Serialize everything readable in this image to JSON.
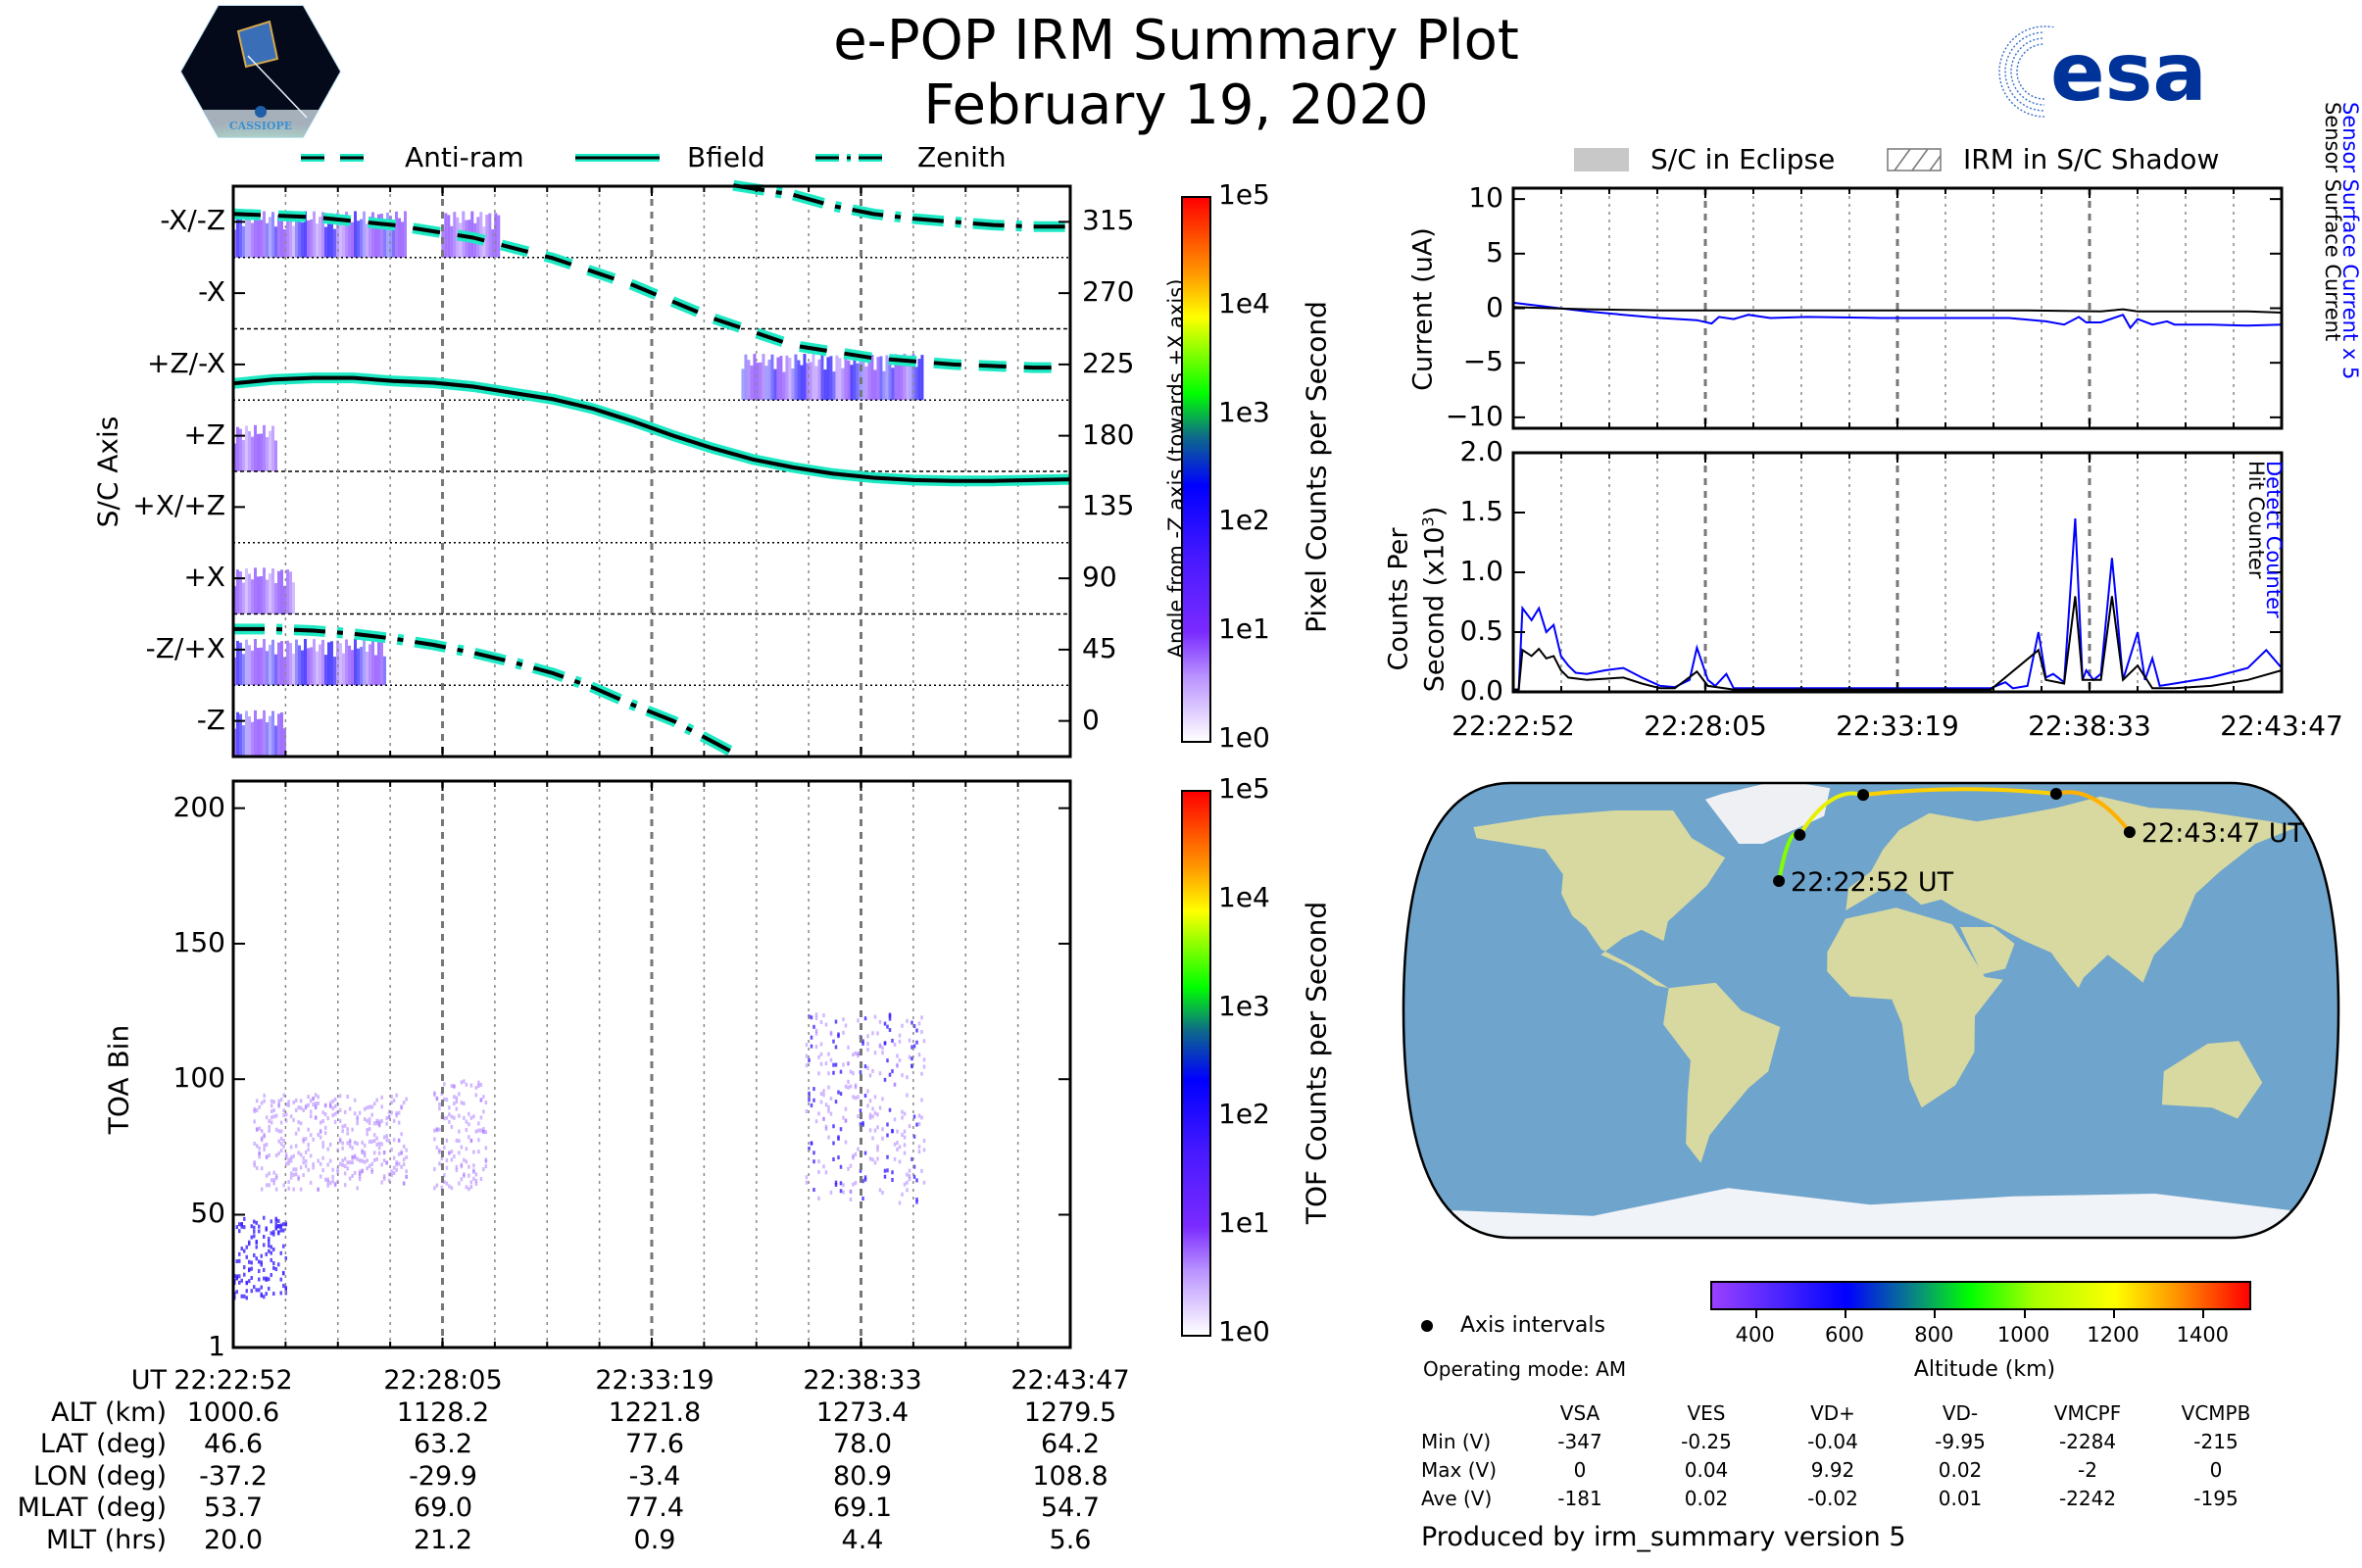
{
  "header": {
    "title": "e-POP IRM Summary Plot",
    "date": "February 19, 2020",
    "left_logo": {
      "name": "cassiope-logo",
      "text": "CASSIOPE"
    },
    "right_logo": {
      "name": "esa-logo",
      "text": "esa",
      "color": "#003399"
    }
  },
  "colors": {
    "trace_outline": "#1de9c4",
    "blue_series": "#0000ff",
    "black_series": "#000000",
    "spectrogram_main": "#8a2be2"
  },
  "left_legend": {
    "items": [
      {
        "label": "Anti-ram",
        "style": "dashed"
      },
      {
        "label": "Bfield",
        "style": "solid"
      },
      {
        "label": "Zenith",
        "style": "dashdot"
      }
    ]
  },
  "right_legend": {
    "items": [
      {
        "label": "S/C in Eclipse",
        "swatch": "gray-fill"
      },
      {
        "label": "IRM in S/C Shadow",
        "swatch": "hatched"
      }
    ]
  },
  "chart_data": [
    {
      "id": "sc-axis-panel",
      "type": "heatmap",
      "title": "",
      "ylabel": "S/C Axis",
      "y2label": "Angle from -Z axis (towards +X axis)",
      "y_categories": [
        "-X/-Z",
        "-X",
        "+Z/-X",
        "+Z",
        "+X/+Z",
        "+X",
        "-Z/+X",
        "-Z"
      ],
      "y2_ticks": [
        315,
        270,
        225,
        180,
        135,
        90,
        45,
        0
      ],
      "y2lim": [
        -20,
        340
      ],
      "x_ticks": [
        "22:22:52",
        "22:28:05",
        "22:33:19",
        "22:38:33",
        "22:43:47"
      ],
      "x_minutes_range": [
        0,
        20.92
      ],
      "colorbar": {
        "label": "Pixel Counts per Second",
        "scale": "log",
        "ticks": [
          "1e0",
          "1e1",
          "1e2",
          "1e3",
          "1e4",
          "1e5"
        ]
      },
      "lines": [
        {
          "name": "Anti-ram",
          "style": "dashed",
          "x_min": [
            0,
            2,
            4,
            6,
            8,
            10,
            12,
            14,
            16,
            18,
            20,
            20.92
          ],
          "y_deg": [
            320,
            318,
            313,
            305,
            292,
            275,
            254,
            237,
            229,
            225,
            223,
            223
          ]
        },
        {
          "name": "Bfield",
          "style": "solid",
          "x_min": [
            0,
            1,
            2,
            3,
            4,
            5,
            6,
            7,
            8,
            9,
            10,
            11,
            12,
            13,
            14,
            15,
            16,
            17,
            18,
            19,
            20,
            20.92
          ],
          "y_deg": [
            213,
            215.5,
            216.5,
            216.5,
            214.5,
            213.5,
            211,
            207,
            203,
            197,
            189,
            180,
            172,
            165,
            160,
            156,
            153.5,
            152,
            151.5,
            151.5,
            152,
            152.5
          ]
        },
        {
          "name": "Zenith (upper)",
          "style": "dashdot",
          "x_min": [
            12.5,
            14,
            15,
            16,
            17,
            18,
            19,
            20,
            20.92
          ],
          "y_deg": [
            338,
            332,
            325,
            320,
            317,
            315,
            313,
            312,
            312
          ]
        },
        {
          "name": "Zenith (lower)",
          "style": "dashdot",
          "x_min": [
            0,
            1,
            2,
            3,
            4,
            5,
            6,
            7,
            8,
            9,
            10,
            11,
            12.5
          ],
          "y_deg": [
            58,
            58,
            57,
            55,
            52,
            48,
            43,
            37,
            30,
            21,
            10,
            0,
            -20
          ]
        }
      ],
      "blobs": [
        {
          "x_min": [
            0,
            4.3
          ],
          "row": "-X/-Z",
          "intensity": "1e1-1e2"
        },
        {
          "x_min": [
            5.2,
            6.6
          ],
          "row": "-X/-Z",
          "intensity": "1e1"
        },
        {
          "x_min": [
            12.7,
            17.2
          ],
          "row": "+Z/-X",
          "intensity": "1e1-1e2"
        },
        {
          "x_min": [
            0,
            1.1
          ],
          "row": "+Z",
          "intensity": "1e0-1e1"
        },
        {
          "x_min": [
            0,
            1.5
          ],
          "row": "+X",
          "intensity": "1e1"
        },
        {
          "x_min": [
            0,
            3.8
          ],
          "row": "-Z/+X",
          "intensity": "1e1-1e2"
        },
        {
          "x_min": [
            0,
            1.3
          ],
          "row": "-Z",
          "intensity": "1e1-1e2"
        }
      ]
    },
    {
      "id": "toa-panel",
      "type": "heatmap",
      "ylabel": "TOA Bin",
      "y_ticks": [
        1,
        50,
        100,
        150,
        200
      ],
      "ylim": [
        1,
        210
      ],
      "x_ticks": [
        "22:22:52",
        "22:28:05",
        "22:33:19",
        "22:38:33",
        "22:43:47"
      ],
      "colorbar": {
        "label": "TOF Counts per Second",
        "scale": "log",
        "ticks": [
          "1e0",
          "1e1",
          "1e2",
          "1e3",
          "1e4",
          "1e5"
        ]
      },
      "blobs": [
        {
          "x_min": [
            0,
            1.3
          ],
          "toa": [
            20,
            50
          ],
          "intensity": "1e1"
        },
        {
          "x_min": [
            0.5,
            4.3
          ],
          "toa": [
            60,
            95
          ],
          "intensity": "1e0-1e1"
        },
        {
          "x_min": [
            5.0,
            6.3
          ],
          "toa": [
            60,
            100
          ],
          "intensity": "1e0-1e1"
        },
        {
          "x_min": [
            14.3,
            17.3
          ],
          "toa": [
            55,
            125
          ],
          "intensity": "1e1"
        }
      ]
    },
    {
      "id": "current-panel",
      "type": "line",
      "ylabel": "Current (uA)",
      "ylim": [
        -11,
        11
      ],
      "y_ticks": [
        10,
        5,
        0,
        -5,
        -10
      ],
      "x_ticks": [
        "22:22:52",
        "22:28:05",
        "22:33:19",
        "22:38:33",
        "22:43:47"
      ],
      "series": [
        {
          "name": "Sensor Surface Current x 5",
          "color": "#0000ff",
          "x_min": [
            0,
            1,
            2,
            3,
            4,
            5,
            5.4,
            5.6,
            6,
            6.4,
            7,
            8,
            10,
            12,
            13.5,
            14.5,
            15,
            15.4,
            15.6,
            16,
            16.6,
            16.8,
            17,
            17.4,
            17.8,
            18,
            19,
            20,
            20.92
          ],
          "values": [
            0.5,
            0.1,
            -0.3,
            -0.6,
            -0.9,
            -1.1,
            -1.4,
            -0.8,
            -1.0,
            -0.6,
            -0.9,
            -0.8,
            -0.9,
            -0.9,
            -0.9,
            -1.2,
            -1.5,
            -0.8,
            -1.3,
            -1.3,
            -0.6,
            -1.8,
            -1.0,
            -1.5,
            -1.2,
            -1.5,
            -1.5,
            -1.6,
            -1.5
          ]
        },
        {
          "name": "Sensor Surface Current",
          "color": "#000000",
          "x_min": [
            0,
            2,
            4,
            6,
            8,
            10,
            12,
            14,
            16,
            16.6,
            17,
            18,
            20,
            20.92
          ],
          "values": [
            0.1,
            -0.1,
            -0.2,
            -0.2,
            -0.2,
            -0.2,
            -0.2,
            -0.2,
            -0.3,
            -0.1,
            -0.3,
            -0.3,
            -0.3,
            -0.4
          ]
        }
      ]
    },
    {
      "id": "counts-panel",
      "type": "line",
      "ylabel": "Counts Per Second (x10^3)",
      "ylim": [
        0,
        2.0
      ],
      "y_ticks": [
        0.0,
        0.5,
        1.0,
        1.5,
        2.0
      ],
      "x_ticks": [
        "22:22:52",
        "22:28:05",
        "22:33:19",
        "22:38:33",
        "22:43:47"
      ],
      "series": [
        {
          "name": "Detect Counter",
          "color": "#0000ff",
          "x_min": [
            0,
            0.15,
            0.25,
            0.5,
            0.7,
            0.9,
            1.1,
            1.3,
            1.5,
            1.7,
            2,
            2.5,
            3,
            3.5,
            4,
            4.4,
            4.8,
            5.0,
            5.3,
            5.5,
            5.8,
            6.0,
            6.5,
            7,
            10,
            13,
            13.4,
            13.6,
            14,
            14.3,
            14.5,
            14.7,
            15,
            15.3,
            15.5,
            15.6,
            15.8,
            16.0,
            16.3,
            16.4,
            16.6,
            16.8,
            17.0,
            17.2,
            17.4,
            17.6,
            18,
            19,
            20,
            20.5,
            20.92
          ],
          "values": [
            0.02,
            0.02,
            0.7,
            0.6,
            0.7,
            0.5,
            0.56,
            0.3,
            0.22,
            0.16,
            0.15,
            0.18,
            0.2,
            0.12,
            0.05,
            0.04,
            0.1,
            0.37,
            0.1,
            0.05,
            0.15,
            0.03,
            0.03,
            0.03,
            0.03,
            0.03,
            0.08,
            0.03,
            0.05,
            0.5,
            0.12,
            0.15,
            0.08,
            1.45,
            0.1,
            0.18,
            0.1,
            0.15,
            1.12,
            0.8,
            0.1,
            0.3,
            0.5,
            0.1,
            0.28,
            0.05,
            0.07,
            0.12,
            0.2,
            0.35,
            0.2
          ]
        },
        {
          "name": "Hit Counter",
          "color": "#000000",
          "x_min": [
            0,
            0.15,
            0.25,
            0.5,
            0.7,
            0.9,
            1.1,
            1.3,
            1.5,
            2,
            2.5,
            3,
            3.5,
            4,
            4.4,
            5.0,
            5.3,
            6,
            7,
            10,
            13,
            14.3,
            14.5,
            15,
            15.3,
            15.5,
            16,
            16.3,
            16.6,
            17.0,
            17.4,
            18,
            19,
            20,
            20.92
          ],
          "values": [
            0.02,
            0.02,
            0.35,
            0.3,
            0.36,
            0.28,
            0.3,
            0.18,
            0.12,
            0.1,
            0.11,
            0.12,
            0.07,
            0.03,
            0.03,
            0.17,
            0.05,
            0.02,
            0.02,
            0.02,
            0.02,
            0.35,
            0.1,
            0.07,
            0.8,
            0.1,
            0.1,
            0.8,
            0.1,
            0.22,
            0.03,
            0.03,
            0.05,
            0.1,
            0.18
          ]
        }
      ]
    },
    {
      "id": "orbit-map",
      "type": "scatter",
      "title": "",
      "track": {
        "lat": [
          46.6,
          63.2,
          77.6,
          78.0,
          64.2
        ],
        "lon": [
          -37.2,
          -29.9,
          -3.4,
          80.9,
          108.8
        ],
        "labels": [
          "22:22:52 UT",
          "",
          "",
          "",
          "22:43:47 UT"
        ]
      },
      "colorbar": {
        "label": "Altitude (km)",
        "ticks": [
          400,
          600,
          800,
          1000,
          1200,
          1400
        ],
        "range": [
          300,
          1500
        ]
      },
      "legend": "Axis intervals"
    }
  ],
  "axis_labels": {
    "sc_axis": "S/C Axis",
    "angle": "Angle from -Z axis (towards +X axis)",
    "pixel_counts": "Pixel Counts per Second",
    "toa_bin": "TOA Bin",
    "tof_counts": "TOF Counts per Second",
    "current": "Current (uA)",
    "counts_line1": "Counts Per",
    "counts_line2": "Second (x10",
    "counts_sup": "3",
    "counts_close": ")",
    "sensor_x5": "Sensor Surface Current x 5",
    "sensor": "Sensor Surface Current",
    "detect": "Detect Counter",
    "hit": "Hit Counter",
    "altitude": "Altitude (km)"
  },
  "ephemeris": {
    "row_labels": [
      "UT",
      "ALT (km)",
      "LAT (deg)",
      "LON (deg)",
      "MLAT (deg)",
      "MLT (hrs)"
    ],
    "columns": [
      [
        "22:22:52",
        "1000.6",
        "46.6",
        "-37.2",
        "53.7",
        "20.0"
      ],
      [
        "22:28:05",
        "1128.2",
        "63.2",
        "-29.9",
        "69.0",
        "21.2"
      ],
      [
        "22:33:19",
        "1221.8",
        "77.6",
        "-3.4",
        "77.4",
        "0.9"
      ],
      [
        "22:38:33",
        "1273.4",
        "78.0",
        "80.9",
        "69.1",
        "4.4"
      ],
      [
        "22:43:47",
        "1279.5",
        "64.2",
        "108.8",
        "54.7",
        "5.6"
      ]
    ]
  },
  "map_info": {
    "legend_label": "Axis intervals",
    "operating_mode": "Operating mode: AM",
    "start_label": "22:22:52 UT",
    "end_label": "22:43:47 UT"
  },
  "voltage_table": {
    "headers": [
      "VSA",
      "VES",
      "VD+",
      "VD-",
      "VMCPF",
      "VCMPB"
    ],
    "rows": [
      {
        "label": "Min (V)",
        "values": [
          "-347",
          "-0.25",
          "-0.04",
          "-9.95",
          "-2284",
          "-215"
        ]
      },
      {
        "label": "Max (V)",
        "values": [
          "0",
          "0.04",
          "9.92",
          "0.02",
          "-2",
          "0"
        ]
      },
      {
        "label": "Ave (V)",
        "values": [
          "-181",
          "0.02",
          "-0.02",
          "0.01",
          "-2242",
          "-195"
        ]
      }
    ]
  },
  "footer": {
    "produced_by": "Produced by irm_summary version 5"
  }
}
